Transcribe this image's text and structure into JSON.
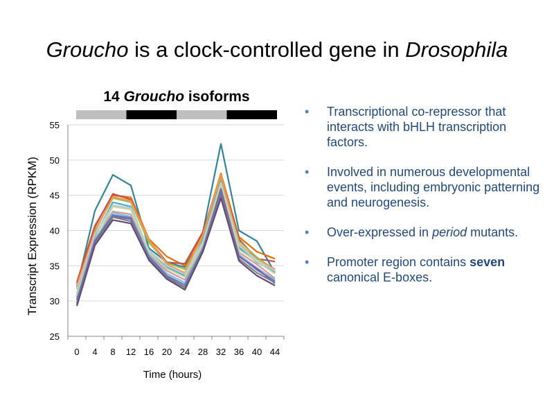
{
  "slide": {
    "title_part1": "Groucho",
    "title_part2": " is a clock-controlled gene in ",
    "title_part3": "Drosophila",
    "chart_heading_part1": "14 ",
    "chart_heading_part2": "Groucho",
    "chart_heading_part3": " isoforms"
  },
  "light_dark_bar": [
    "light",
    "dark",
    "light",
    "dark"
  ],
  "light_dark_colors": {
    "light": "#bfbfbf",
    "dark": "#000000"
  },
  "bullets": [
    {
      "text": "Transcriptional co-repressor that interacts with bHLH transcription factors."
    },
    {
      "text": "Involved in numerous developmental events, including embryonic patterning and neurogenesis."
    },
    {
      "text_part1": "Over-expressed in ",
      "text_part2": "period",
      "text_part3": " mutants."
    },
    {
      "text_part1": "Promoter region contains ",
      "text_part2": "seven",
      "text_part3": " canonical E-boxes."
    }
  ],
  "chart_data": {
    "type": "line",
    "title": "",
    "xlabel": "Time (hours)",
    "ylabel": "Transcript Expression (RPKM)",
    "x": [
      0,
      4,
      8,
      12,
      16,
      20,
      24,
      28,
      32,
      36,
      40,
      44
    ],
    "xticks": [
      "0",
      "4",
      "8",
      "12",
      "16",
      "20",
      "24",
      "28",
      "32",
      "36",
      "40",
      "44"
    ],
    "yticks": [
      "25",
      "30",
      "35",
      "40",
      "45",
      "50",
      "55"
    ],
    "ylim": [
      25,
      55
    ],
    "grid": true,
    "series": [
      {
        "color": "#31849b",
        "values": [
          32.0,
          42.8,
          47.9,
          46.4,
          37.5,
          35.5,
          34.8,
          39.8,
          52.3,
          40.0,
          38.5,
          34.0
        ]
      },
      {
        "color": "#e46c0a",
        "values": [
          32.7,
          40.7,
          45.0,
          44.7,
          38.8,
          36.3,
          35.0,
          39.6,
          48.1,
          39.1,
          37.0,
          36.0
        ]
      },
      {
        "color": "#c0504d",
        "values": [
          32.5,
          40.5,
          45.2,
          44.4,
          38.6,
          35.5,
          35.3,
          39.8,
          47.7,
          38.8,
          36.0,
          35.6
        ]
      },
      {
        "color": "#9bbb59",
        "values": [
          31.8,
          40.0,
          44.6,
          44.0,
          38.3,
          35.4,
          34.5,
          39.0,
          47.3,
          38.5,
          36.2,
          34.4
        ]
      },
      {
        "color": "#f79646",
        "values": [
          32.2,
          39.8,
          44.8,
          44.2,
          38.7,
          35.2,
          34.0,
          39.4,
          47.9,
          38.1,
          35.9,
          34.5
        ]
      },
      {
        "color": "#4bacc6",
        "values": [
          30.5,
          39.2,
          44.0,
          43.4,
          37.0,
          34.8,
          33.6,
          38.6,
          47.0,
          37.6,
          35.5,
          34.1
        ]
      },
      {
        "color": "#b9cde5",
        "values": [
          31.6,
          39.4,
          43.6,
          43.2,
          37.2,
          35.0,
          33.8,
          38.4,
          46.8,
          37.9,
          35.8,
          34.3
        ]
      },
      {
        "color": "#d99694",
        "values": [
          31.0,
          38.8,
          42.7,
          42.3,
          36.6,
          34.3,
          33.0,
          37.8,
          46.3,
          36.9,
          35.2,
          33.2
        ]
      },
      {
        "color": "#c3d69b",
        "values": [
          30.8,
          38.6,
          43.4,
          43.0,
          36.9,
          34.6,
          33.4,
          38.0,
          46.5,
          37.3,
          35.6,
          33.9
        ]
      },
      {
        "color": "#8eb4e3",
        "values": [
          30.3,
          38.4,
          42.5,
          42.0,
          36.5,
          33.9,
          32.6,
          37.6,
          45.8,
          36.6,
          34.7,
          33.0
        ]
      },
      {
        "color": "#4f81bd",
        "values": [
          30.1,
          38.6,
          42.2,
          41.8,
          36.3,
          33.6,
          32.3,
          37.4,
          45.4,
          36.4,
          34.4,
          32.8
        ]
      },
      {
        "color": "#8064a2",
        "values": [
          29.7,
          38.3,
          42.0,
          41.6,
          36.1,
          33.4,
          32.0,
          37.3,
          45.9,
          36.3,
          34.6,
          32.5
        ]
      },
      {
        "color": "#7f7f7f",
        "values": [
          29.5,
          38.0,
          41.9,
          41.3,
          36.0,
          33.3,
          31.9,
          37.2,
          44.9,
          36.0,
          34.0,
          32.6
        ]
      },
      {
        "color": "#604a7b",
        "values": [
          29.3,
          37.9,
          41.5,
          41.0,
          35.8,
          33.1,
          31.6,
          37.0,
          44.6,
          35.7,
          33.6,
          32.2
        ]
      }
    ]
  }
}
